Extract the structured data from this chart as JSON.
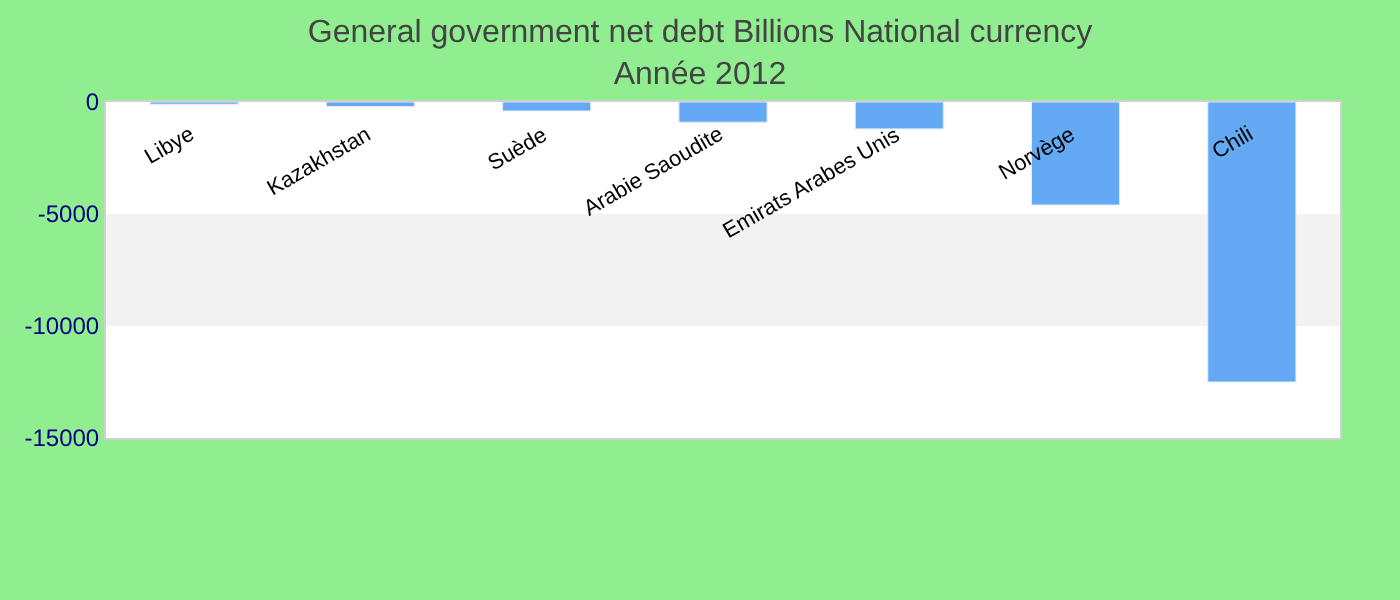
{
  "chart_data": {
    "type": "bar",
    "title": "General government net debt Billions National currency",
    "subtitle": "Année 2012",
    "categories": [
      "Libye",
      "Kazakhstan",
      "Suède",
      "Arabie Saoudite",
      "Emirats Arabes Unis",
      "Norvège",
      "Chili"
    ],
    "series": [
      {
        "color": "#63a9f3",
        "values": [
          -100,
          -200,
          -400,
          -900,
          -1200,
          -4600,
          -12500
        ]
      }
    ],
    "ylim": [
      -15000,
      0
    ],
    "yticks": [
      0,
      -5000,
      -10000,
      -15000
    ],
    "grid": false,
    "bands": [
      {
        "axis": "y",
        "from": -5000,
        "to": -10000,
        "color": "#f2f2f2"
      }
    ]
  }
}
